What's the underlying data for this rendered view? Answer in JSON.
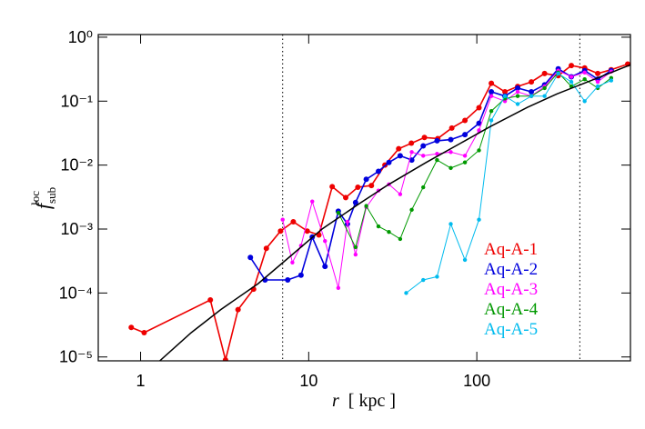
{
  "chart_data": {
    "type": "line",
    "xlabel": {
      "main": "r",
      "unit": "[ kpc ]"
    },
    "ylabel": {
      "main": "f",
      "sub": "sub",
      "sup": "loc"
    },
    "log_x": true,
    "log_y": true,
    "xlim": [
      0.56,
      820
    ],
    "ylim": [
      8.7e-06,
      1.1
    ],
    "xticks": [
      1,
      10,
      100
    ],
    "yticks": [
      {
        "value": 1e-05,
        "label": "10⁻⁵"
      },
      {
        "value": 0.0001,
        "label": "10⁻⁴"
      },
      {
        "value": 0.001,
        "label": "10⁻³"
      },
      {
        "value": 0.01,
        "label": "10⁻²"
      },
      {
        "value": 0.1,
        "label": "10⁻¹"
      },
      {
        "value": 1,
        "label": "10⁰"
      }
    ],
    "vlines": [
      7,
      410
    ],
    "series": [
      {
        "name": "Aq-A-1",
        "color": "#ee0000",
        "x": [
          0.88,
          1.05,
          2.6,
          3.2,
          3.8,
          4.7,
          5.6,
          6.8,
          8.1,
          9.8,
          11.5,
          13.8,
          16.6,
          19.6,
          23.6,
          28.4,
          34.3,
          40.8,
          48.8,
          58.6,
          71,
          85,
          103,
          122,
          147,
          175,
          211,
          253,
          305,
          365,
          438,
          524,
          630,
          790
        ],
        "values": [
          2.9e-05,
          2.4e-05,
          7.8e-05,
          9e-06,
          5.5e-05,
          0.000115,
          0.0005,
          0.00093,
          0.0013,
          0.00093,
          0.00081,
          0.0046,
          0.0031,
          0.0045,
          0.0048,
          0.01,
          0.018,
          0.022,
          0.027,
          0.026,
          0.038,
          0.05,
          0.079,
          0.19,
          0.14,
          0.17,
          0.2,
          0.27,
          0.25,
          0.36,
          0.33,
          0.27,
          0.31,
          0.38
        ]
      },
      {
        "name": "Aq-A-2",
        "color": "#0000dd",
        "x": [
          4.5,
          5.5,
          7.5,
          9,
          10.5,
          12.5,
          15,
          17,
          19,
          22,
          26,
          30,
          35,
          41,
          48,
          58,
          70,
          85,
          103,
          122,
          147,
          175,
          211,
          253,
          305,
          365,
          438,
          524,
          630
        ],
        "values": [
          0.00036,
          0.00016,
          0.00016,
          0.00019,
          0.00075,
          0.00026,
          0.0019,
          0.0012,
          0.0026,
          0.006,
          0.008,
          0.011,
          0.014,
          0.012,
          0.02,
          0.024,
          0.025,
          0.03,
          0.045,
          0.14,
          0.12,
          0.16,
          0.14,
          0.18,
          0.32,
          0.24,
          0.3,
          0.22,
          0.3
        ]
      },
      {
        "name": "Aq-A-3",
        "color": "#ff00ff",
        "x": [
          7,
          8,
          9,
          10.5,
          12.5,
          15,
          17,
          19,
          22,
          26,
          30,
          35,
          41,
          48,
          58,
          70,
          85,
          103,
          122,
          147,
          175,
          211,
          253,
          305,
          365,
          438,
          524,
          630
        ],
        "values": [
          0.0014,
          0.0003,
          0.00055,
          0.0027,
          0.00065,
          0.00012,
          0.0013,
          0.0004,
          0.0022,
          0.004,
          0.005,
          0.0035,
          0.016,
          0.014,
          0.015,
          0.016,
          0.014,
          0.035,
          0.12,
          0.1,
          0.14,
          0.12,
          0.17,
          0.3,
          0.24,
          0.28,
          0.2,
          0.29
        ]
      },
      {
        "name": "Aq-A-4",
        "color": "#009900",
        "x": [
          15,
          19,
          22,
          26,
          30,
          35,
          41,
          48,
          58,
          70,
          85,
          103,
          122,
          147,
          175,
          211,
          253,
          305,
          365,
          438,
          524,
          630
        ],
        "values": [
          0.0018,
          0.00052,
          0.0023,
          0.0011,
          0.0009,
          0.0007,
          0.002,
          0.0045,
          0.012,
          0.009,
          0.011,
          0.017,
          0.07,
          0.11,
          0.12,
          0.12,
          0.16,
          0.28,
          0.17,
          0.22,
          0.16,
          0.23
        ]
      },
      {
        "name": "Aq-A-5",
        "color": "#00bbee",
        "x": [
          38,
          48,
          58,
          70,
          85,
          103,
          122,
          147,
          175,
          211,
          253,
          305,
          365,
          438,
          524,
          630
        ],
        "values": [
          0.0001,
          0.00016,
          0.00018,
          0.0012,
          0.00033,
          0.0014,
          0.05,
          0.12,
          0.09,
          0.12,
          0.12,
          0.27,
          0.2,
          0.1,
          0.17,
          0.21
        ]
      }
    ],
    "curve": {
      "color": "#000000",
      "x": [
        1.3,
        2,
        3,
        5,
        8,
        12,
        20,
        30,
        50,
        80,
        120,
        200,
        300,
        500,
        820
      ],
      "values": [
        8.7e-06,
        2.4e-05,
        5.5e-05,
        0.00014,
        0.0004,
        0.001,
        0.0025,
        0.005,
        0.011,
        0.022,
        0.04,
        0.08,
        0.13,
        0.22,
        0.37
      ]
    }
  }
}
